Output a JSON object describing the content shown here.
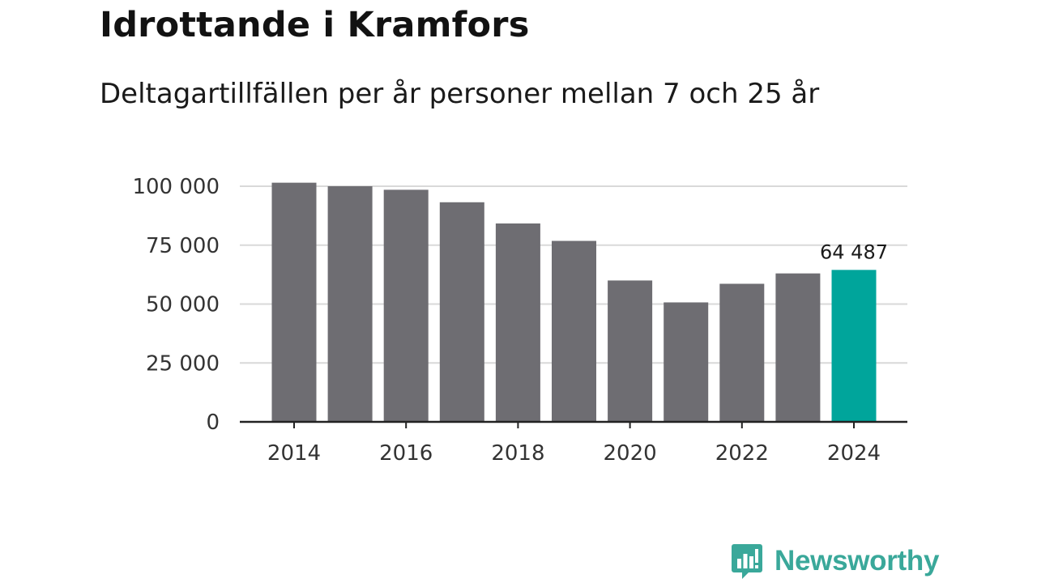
{
  "chart_data": {
    "type": "bar",
    "title": "Idrottande i Kramfors",
    "subtitle": "Deltagartillfällen per år personer mellan 7 och 25 år",
    "categories": [
      "2014",
      "2015",
      "2016",
      "2017",
      "2018",
      "2019",
      "2020",
      "2021",
      "2022",
      "2023",
      "2024"
    ],
    "values": [
      101500,
      100000,
      98500,
      93200,
      84200,
      76800,
      60000,
      50700,
      58600,
      63000,
      64487
    ],
    "ylim": [
      0,
      100000
    ],
    "yticks": [
      0,
      25000,
      50000,
      75000,
      100000
    ],
    "ytick_labels": [
      "0",
      "25 000",
      "50 000",
      "75 000",
      "100 000"
    ],
    "xtick_labels": [
      "2014",
      "2016",
      "2018",
      "2020",
      "2022",
      "2024"
    ],
    "highlight_index": 10,
    "highlight_label": "64 487",
    "xlabel": "",
    "ylabel": "",
    "grid": true
  },
  "colors": {
    "bar": "#6e6d72",
    "highlight": "#00a59b",
    "grid": "#d9d9d9",
    "axis": "#222222",
    "brand": "#3aa89a"
  },
  "branding": {
    "logo_text": "Newsworthy",
    "logo_icon": "newsworthy-logo-icon"
  }
}
